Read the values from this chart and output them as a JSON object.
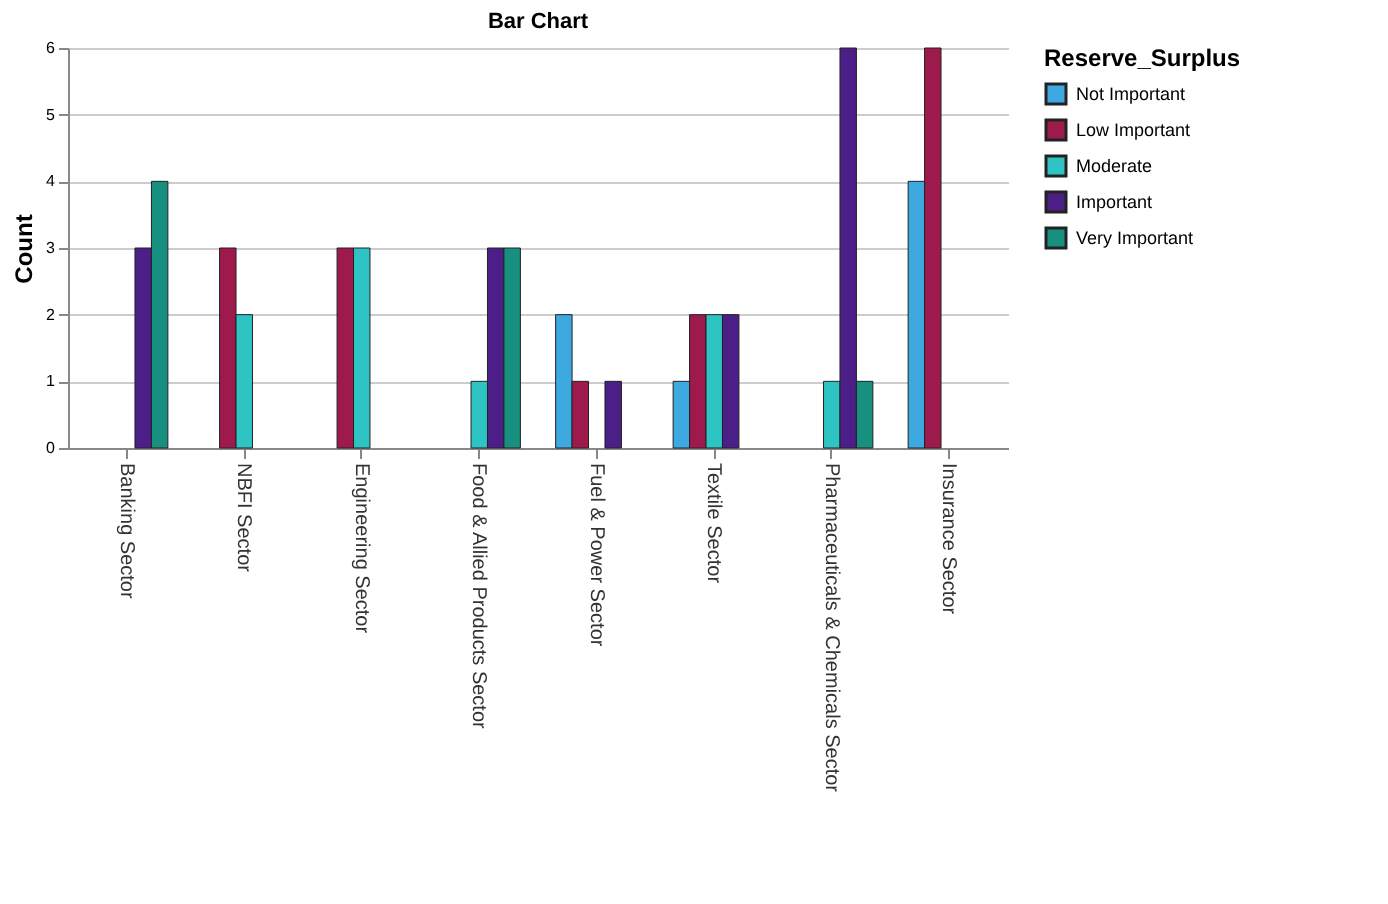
{
  "chart_data": {
    "type": "bar",
    "title": "Bar Chart",
    "ylabel": "Count",
    "legend_title": "Reserve_Surplus",
    "categories": [
      "Banking Sector",
      "NBFI Sector",
      "Engineering Sector",
      "Food & Allied Products Sector",
      "Fuel & Power Sector",
      "Textile Sector",
      "Pharmaceuticals & Chemicals Sector",
      "Insurance Sector"
    ],
    "series": [
      {
        "name": "Not Important",
        "color": "#3da9e0",
        "values": [
          null,
          null,
          null,
          null,
          2,
          1,
          null,
          4
        ]
      },
      {
        "name": "Low Important",
        "color": "#9e1a4c",
        "values": [
          null,
          3,
          3,
          null,
          1,
          2,
          null,
          6
        ]
      },
      {
        "name": "Moderate",
        "color": "#2ec4c4",
        "values": [
          null,
          2,
          3,
          1,
          null,
          2,
          1,
          null
        ]
      },
      {
        "name": "Important",
        "color": "#4b1f87",
        "values": [
          3,
          null,
          null,
          3,
          1,
          2,
          6,
          null
        ]
      },
      {
        "name": "Very Important",
        "color": "#17907f",
        "values": [
          4,
          null,
          null,
          3,
          null,
          null,
          1,
          null
        ]
      }
    ],
    "ylim": [
      0,
      6
    ],
    "yticks": [
      0,
      1,
      2,
      3,
      4,
      5,
      6
    ],
    "grid": "y",
    "legend": "top right"
  }
}
